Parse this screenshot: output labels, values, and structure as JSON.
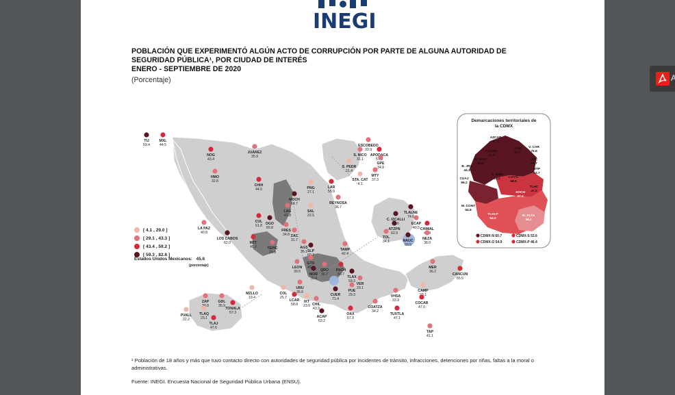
{
  "header": {
    "logo_text": "INEGI"
  },
  "title": {
    "line1": "POBLACIÓN QUE EXPERIMENTÓ ALGÚN ACTO DE CORRUPCIÓN POR PARTE DE ALGUNA AUTORIDAD DE",
    "line2": "SEGURIDAD PÚBLICA¹, POR CIUDAD DE INTERÉS",
    "line3": "ENERO - SEPTIEMBRE DE 2020",
    "unit": "(Porcentaje)"
  },
  "legend": {
    "items": [
      {
        "label": "[  4.1 , 29.0 ]",
        "color": "#eeb7a8"
      },
      {
        "label": "[ 29.1 , 43.3 ]",
        "color": "#e0727a"
      },
      {
        "label": "[ 43.4 , 59.2 ]",
        "color": "#d42a3a"
      },
      {
        "label": "[ 59.3 , 82.6 ]",
        "color": "#5a1523"
      }
    ],
    "national_label": "Estados Unidos Mexicanos:",
    "national_value": "45.6",
    "national_unit": "(porcentaje)"
  },
  "cdmx_inset": {
    "title_line1": "Demarcaciones territoriales de",
    "title_line2": "la CDMX",
    "items": [
      {
        "name": "AZCAP",
        "value": "57.1"
      },
      {
        "name": "GAM",
        "value": "61.7"
      },
      {
        "name": "V. CAR",
        "value": "76.8"
      },
      {
        "name": "CUAUH",
        "value": "52.0"
      },
      {
        "name": "IZTC",
        "value": "49.7"
      },
      {
        "name": "M. HGO",
        "value": "56.0"
      },
      {
        "name": "B. JRZ",
        "value": "44.3"
      },
      {
        "name": "IZTP",
        "value": "63.7"
      },
      {
        "name": "A. OBR",
        "value": "23.1"
      },
      {
        "name": "COYO",
        "value": "58.5"
      },
      {
        "name": "CUAJ",
        "value": "66.2"
      },
      {
        "name": "TLHC",
        "value": "47.2"
      },
      {
        "name": "XOCH",
        "value": "37.4"
      },
      {
        "name": "M. CONT",
        "value": "54.8"
      },
      {
        "name": "TLALP",
        "value": "54.0"
      },
      {
        "name": "M. ALTA",
        "value": "38.2"
      }
    ],
    "zones": [
      {
        "label": "CDMX-N",
        "value": "60.7",
        "color": "#5a1523"
      },
      {
        "label": "CDMX-S",
        "value": "53.6",
        "color": "#d42a3a"
      },
      {
        "label": "CDMX-O",
        "value": "54.9",
        "color": "#d42a3a"
      },
      {
        "label": "CDMX-P",
        "value": "46.4",
        "color": "#d42a3a"
      }
    ]
  },
  "cities": [
    {
      "name": "TIJ",
      "value": "59.4",
      "color": "#5a1523"
    },
    {
      "name": "MXL",
      "value": "44.5",
      "color": "#d42a3a"
    },
    {
      "name": "NOG",
      "value": "43.4",
      "color": "#d42a3a"
    },
    {
      "name": "JUÁREZ",
      "value": "35.9",
      "color": "#e0727a"
    },
    {
      "name": "HMO",
      "value": "32.8",
      "color": "#e0727a"
    },
    {
      "name": "CHIH",
      "value": "44.0",
      "color": "#d42a3a"
    },
    {
      "name": "ESCOBEDO",
      "value": "33.9",
      "color": "#e0727a"
    },
    {
      "name": "S. NICO",
      "value": "31.1",
      "color": "#e0727a"
    },
    {
      "name": "APODACA",
      "value": "57.5",
      "color": "#d42a3a"
    },
    {
      "name": "GPE",
      "value": "34.9",
      "color": "#e0727a"
    },
    {
      "name": "S. PEDR",
      "value": "21.4",
      "color": "#eeb7a8"
    },
    {
      "name": "MTY",
      "value": "37.3",
      "color": "#e0727a"
    },
    {
      "name": "STA. CAT",
      "value": "4.1",
      "color": "#eeb7a8"
    },
    {
      "name": "PNG",
      "value": "27.1",
      "color": "#eeb7a8"
    },
    {
      "name": "LAR",
      "value": "55.9",
      "color": "#d42a3a"
    },
    {
      "name": "REYNOSA",
      "value": "36.7",
      "color": "#e0727a"
    },
    {
      "name": "MOCH",
      "value": "64.7",
      "color": "#5a1523"
    },
    {
      "name": "LAG",
      "value": "41.8",
      "color": "#e0727a"
    },
    {
      "name": "SAL",
      "value": "22.5",
      "color": "#eeb7a8"
    },
    {
      "name": "CUL",
      "value": "51.8",
      "color": "#d42a3a"
    },
    {
      "name": "DGO",
      "value": "60.8",
      "color": "#5a1523"
    },
    {
      "name": "LA PAZ",
      "value": "40.8",
      "color": "#e0727a"
    },
    {
      "name": "FRES",
      "value": "34.8",
      "color": "#e0727a"
    },
    {
      "name": "ZAC",
      "value": "31.7",
      "color": "#e0727a"
    },
    {
      "name": "LOS CABOS",
      "value": "62.0",
      "color": "#5a1523"
    },
    {
      "name": "MZT",
      "value": "45.2",
      "color": "#d42a3a"
    },
    {
      "name": "TEPIC",
      "value": "29.9",
      "color": "#e0727a"
    },
    {
      "name": "AGS",
      "value": "36.1",
      "color": "#e0727a"
    },
    {
      "name": "SLP",
      "value": "60.7",
      "color": "#5a1523"
    },
    {
      "name": "TAMP",
      "value": "42.4",
      "color": "#e0727a"
    },
    {
      "name": "TLALNE",
      "value": "74.6",
      "color": "#5a1523"
    },
    {
      "name": "C. IZCALLI",
      "value": "62.6",
      "color": "#5a1523"
    },
    {
      "name": "ECAP",
      "value": "40.5",
      "color": "#e0727a"
    },
    {
      "name": "CHIMAL",
      "value": "49.4",
      "color": "#d42a3a"
    },
    {
      "name": "ATZPN",
      "value": "62.9",
      "color": "#5a1523"
    },
    {
      "name": "NEZA",
      "value": "38.0",
      "color": "#e0727a"
    },
    {
      "name": "TOL",
      "value": "34.1",
      "color": "#e0727a"
    },
    {
      "name": "NAUC",
      "value": "60.5",
      "color": "#5a1523"
    },
    {
      "name": "LEON",
      "value": "39.5",
      "color": "#e0727a"
    },
    {
      "name": "GTO",
      "value": "43.0",
      "color": "#e0727a"
    },
    {
      "name": "QRO",
      "value": "36.7",
      "color": "#e0727a"
    },
    {
      "name": "MOR",
      "value": "70.4",
      "color": "#5a1523"
    },
    {
      "name": "PACH",
      "value": "50.7",
      "color": "#d42a3a"
    },
    {
      "name": "TLAX",
      "value": "59.3",
      "color": "#5a1523"
    },
    {
      "name": "URU",
      "value": "35.6",
      "color": "#e0727a"
    },
    {
      "name": "MZLLO",
      "value": "19.4",
      "color": "#eeb7a8"
    },
    {
      "name": "COL",
      "value": "25.7",
      "color": "#eeb7a8"
    },
    {
      "name": "CUER",
      "value": "71.4",
      "color": "#5a1523"
    },
    {
      "name": "PUE",
      "value": "29.3",
      "color": "#e0727a"
    },
    {
      "name": "VER",
      "value": "29.1",
      "color": "#e0727a"
    },
    {
      "name": "LCAR",
      "value": "58.8",
      "color": "#d42a3a"
    },
    {
      "name": "IXT",
      "value": "23.9",
      "color": "#eeb7a8"
    },
    {
      "name": "CHIL",
      "value": "43.3",
      "color": "#e0727a"
    },
    {
      "name": "ACAP",
      "value": "63.2",
      "color": "#5a1523"
    },
    {
      "name": "OAX",
      "value": "57.3",
      "color": "#d42a3a"
    },
    {
      "name": "COATZA",
      "value": "34.2",
      "color": "#e0727a"
    },
    {
      "name": "VHSA",
      "value": "33.9",
      "color": "#e0727a"
    },
    {
      "name": "CAMP",
      "value": "23.1",
      "color": "#eeb7a8"
    },
    {
      "name": "MER",
      "value": "36.2",
      "color": "#e0727a"
    },
    {
      "name": "CANCUN",
      "value": "55.5",
      "color": "#d42a3a"
    },
    {
      "name": "COCAR",
      "value": "47.0",
      "color": "#d42a3a"
    },
    {
      "name": "TUXTLA",
      "value": "47.1",
      "color": "#d42a3a"
    },
    {
      "name": "TAP",
      "value": "41.1",
      "color": "#e0727a"
    },
    {
      "name": "ZAP",
      "value": "38.8",
      "color": "#e0727a"
    },
    {
      "name": "GDL",
      "value": "35.9",
      "color": "#e0727a"
    },
    {
      "name": "TONALA",
      "value": "57.3",
      "color": "#d42a3a"
    },
    {
      "name": "TLAQ",
      "value": "23.1",
      "color": "#eeb7a8"
    },
    {
      "name": "TLAJ",
      "value": "47.6",
      "color": "#d42a3a"
    },
    {
      "name": "PVALL",
      "value": "22.2",
      "color": "#eeb7a8"
    }
  ],
  "footnote": "¹ Población de 18 años y más que tuvo contacto directo con autoridades de seguridad pública por incidentes de tránsito, infracciones, detenciones por riñas, faltas a la moral o administrativas.",
  "source": "Fuente: INEGI. Encuesta Nacional de Seguridad Pública Urbana (ENSU).",
  "viewer": {
    "side_button_letter": "A"
  }
}
